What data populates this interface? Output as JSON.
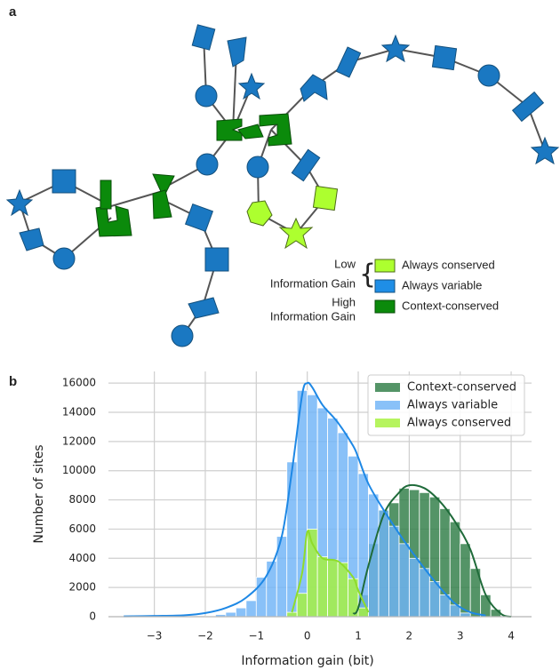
{
  "panel_a": {
    "label": "a",
    "legend": {
      "low": "Low",
      "low_caption": "Information Gain",
      "high": "High",
      "high_caption": "Information Gain",
      "items": [
        "Always conserved",
        "Always variable",
        "Context-conserved"
      ]
    }
  },
  "chart_data": {
    "type": "histogram",
    "label": "b",
    "xlabel": "Information gain (bit)",
    "ylabel": "Number of sites",
    "xlim": [
      -3.9,
      4.4
    ],
    "ylim": [
      0,
      16800
    ],
    "xticks": [
      {
        "value": -3,
        "label": "−3"
      },
      {
        "value": -2,
        "label": "−2"
      },
      {
        "value": -1,
        "label": "−1"
      },
      0,
      1,
      2,
      3,
      4
    ],
    "yticks": [
      0,
      2000,
      4000,
      6000,
      8000,
      10000,
      12000,
      14000,
      16000
    ],
    "grid": true,
    "legend": "upper right",
    "bins": [
      -2.0,
      -1.8,
      -1.6,
      -1.4,
      -1.2,
      -1.0,
      -0.8,
      -0.6,
      -0.4,
      -0.2,
      0,
      0.2,
      0.4,
      0.6,
      0.8,
      1.0,
      1.2,
      1.4,
      1.6,
      1.8,
      2.0,
      2.2,
      2.4,
      2.6,
      2.8,
      3.0,
      3.2,
      3.4,
      3.6,
      3.8,
      4.0
    ],
    "kde_x": [
      -3.6,
      -3,
      -2.4,
      -2,
      -1.6,
      -1.2,
      -0.8,
      -0.5,
      -0.3,
      -0.1,
      0,
      0.1,
      0.3,
      0.6,
      0.9,
      1.0,
      1.2,
      1.5,
      1.8,
      2.0,
      2.3,
      2.6,
      2.9,
      3.2,
      3.5,
      3.8,
      4.0
    ],
    "series": [
      {
        "name": "Context-conserved",
        "color": "#2e7d46",
        "line_color": "#1f6b3a",
        "values": [
          0,
          0,
          0,
          0,
          0,
          0,
          0,
          0,
          0,
          0,
          0,
          0,
          0,
          0,
          100,
          1500,
          5000,
          7300,
          7800,
          8800,
          8700,
          8500,
          8200,
          7400,
          6500,
          5000,
          3300,
          1500,
          500,
          0
        ],
        "kde": [
          null,
          null,
          null,
          null,
          null,
          null,
          null,
          null,
          null,
          null,
          null,
          null,
          null,
          null,
          200,
          600,
          3500,
          7000,
          8500,
          9000,
          8800,
          7900,
          6500,
          4600,
          1500,
          200,
          0
        ]
      },
      {
        "name": "Always variable",
        "color": "#6fb3f7",
        "line_color": "#1e88e5",
        "values": [
          50,
          150,
          300,
          600,
          1100,
          2700,
          3800,
          5500,
          10600,
          15500,
          15200,
          14300,
          13600,
          12600,
          11000,
          9800,
          8400,
          7300,
          6200,
          5000,
          4000,
          3300,
          2400,
          1500,
          800,
          250,
          0,
          0,
          0,
          0
        ],
        "kde": [
          20,
          50,
          100,
          250,
          600,
          1300,
          2800,
          5500,
          10000,
          15200,
          16000,
          15700,
          14500,
          13300,
          11700,
          10900,
          9100,
          7300,
          5700,
          4700,
          3300,
          2000,
          900,
          300,
          80,
          null,
          null
        ]
      },
      {
        "name": "Always conserved",
        "color": "#a6f23c",
        "line_color": "#8fdc2a",
        "values": [
          0,
          0,
          0,
          0,
          0,
          0,
          0,
          0,
          300,
          1600,
          6000,
          4100,
          3900,
          3700,
          2600,
          600,
          0,
          0,
          0,
          0,
          0,
          0,
          0,
          0,
          0,
          0,
          0,
          0,
          0,
          0
        ],
        "kde": [
          null,
          null,
          null,
          null,
          null,
          null,
          null,
          null,
          300,
          3000,
          5800,
          5000,
          4000,
          3800,
          2700,
          1800,
          300,
          null,
          null,
          null,
          null,
          null,
          null,
          null,
          null,
          null,
          null
        ]
      }
    ]
  }
}
